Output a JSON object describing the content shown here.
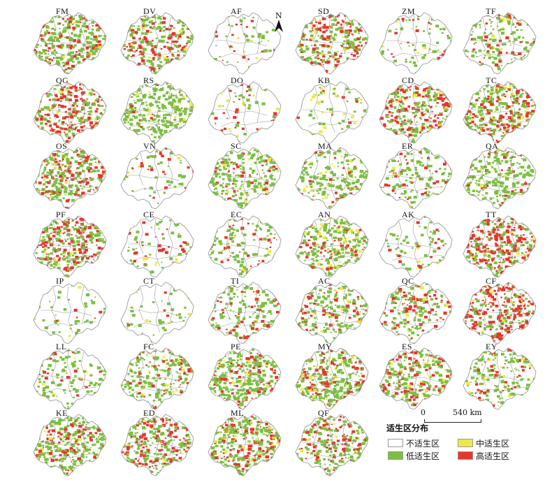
{
  "panels": [
    {
      "label": "FM",
      "green": 0.7,
      "yellow": 0.05,
      "red": 0.18
    },
    {
      "label": "DV",
      "green": 0.4,
      "yellow": 0.05,
      "red": 0.3
    },
    {
      "label": "AF",
      "green": 0.08,
      "yellow": 0.01,
      "red": 0.04
    },
    {
      "label": "SD",
      "green": 0.4,
      "yellow": 0.05,
      "red": 0.3
    },
    {
      "label": "ZM",
      "green": 0.12,
      "yellow": 0.02,
      "red": 0.04
    },
    {
      "label": "TF",
      "green": 0.35,
      "yellow": 0.05,
      "red": 0.12
    },
    {
      "label": "QG",
      "green": 0.35,
      "yellow": 0.05,
      "red": 0.4
    },
    {
      "label": "RS",
      "green": 0.7,
      "yellow": 0.05,
      "red": 0.05
    },
    {
      "label": "DO",
      "green": 0.08,
      "yellow": 0.02,
      "red": 0.06
    },
    {
      "label": "KB",
      "green": 0.1,
      "yellow": 0.05,
      "red": 0.02
    },
    {
      "label": "CD",
      "green": 0.45,
      "yellow": 0.05,
      "red": 0.3
    },
    {
      "label": "TC",
      "green": 0.5,
      "yellow": 0.1,
      "red": 0.35
    },
    {
      "label": "OS",
      "green": 0.55,
      "yellow": 0.05,
      "red": 0.25
    },
    {
      "label": "VN",
      "green": 0.15,
      "yellow": 0.02,
      "red": 0.06
    },
    {
      "label": "SC",
      "green": 0.55,
      "yellow": 0.05,
      "red": 0.1
    },
    {
      "label": "MA",
      "green": 0.4,
      "yellow": 0.05,
      "red": 0.08
    },
    {
      "label": "ER",
      "green": 0.25,
      "yellow": 0.03,
      "red": 0.1
    },
    {
      "label": "QA",
      "green": 0.6,
      "yellow": 0.05,
      "red": 0.08
    },
    {
      "label": "PF",
      "green": 0.45,
      "yellow": 0.05,
      "red": 0.35
    },
    {
      "label": "CE",
      "green": 0.12,
      "yellow": 0.02,
      "red": 0.08
    },
    {
      "label": "EC",
      "green": 0.2,
      "yellow": 0.02,
      "red": 0.1
    },
    {
      "label": "AN",
      "green": 0.5,
      "yellow": 0.15,
      "red": 0.15
    },
    {
      "label": "AK",
      "green": 0.15,
      "yellow": 0.02,
      "red": 0.05
    },
    {
      "label": "TT",
      "green": 0.35,
      "yellow": 0.05,
      "red": 0.45
    },
    {
      "label": "IP",
      "green": 0.06,
      "yellow": 0.01,
      "red": 0.02
    },
    {
      "label": "CT",
      "green": 0.1,
      "yellow": 0.02,
      "red": 0.02
    },
    {
      "label": "TI",
      "green": 0.3,
      "yellow": 0.03,
      "red": 0.1
    },
    {
      "label": "AC",
      "green": 0.35,
      "yellow": 0.05,
      "red": 0.15
    },
    {
      "label": "QC",
      "green": 0.3,
      "yellow": 0.03,
      "red": 0.2
    },
    {
      "label": "CF",
      "green": 0.25,
      "yellow": 0.05,
      "red": 0.55
    },
    {
      "label": "LL",
      "green": 0.25,
      "yellow": 0.02,
      "red": 0.08
    },
    {
      "label": "FC",
      "green": 0.45,
      "yellow": 0.05,
      "red": 0.12
    },
    {
      "label": "PE",
      "green": 0.65,
      "yellow": 0.08,
      "red": 0.2
    },
    {
      "label": "MY",
      "green": 0.55,
      "yellow": 0.08,
      "red": 0.25
    },
    {
      "label": "ES",
      "green": 0.4,
      "yellow": 0.05,
      "red": 0.22
    },
    {
      "label": "EY",
      "green": 0.35,
      "yellow": 0.05,
      "red": 0.12
    },
    {
      "label": "KE",
      "green": 0.6,
      "yellow": 0.05,
      "red": 0.25
    },
    {
      "label": "ED",
      "green": 0.45,
      "yellow": 0.05,
      "red": 0.35
    },
    {
      "label": "ML",
      "green": 0.55,
      "yellow": 0.08,
      "red": 0.35
    },
    {
      "label": "QF",
      "green": 0.45,
      "yellow": 0.05,
      "red": 0.25
    }
  ],
  "north_label": "N",
  "scale": {
    "start": "0",
    "end": "540 km"
  },
  "legend": {
    "title": "适生区分布",
    "items": [
      {
        "label": "不适生区",
        "color": "#ffffff"
      },
      {
        "label": "中适生区",
        "color": "#f0e84a"
      },
      {
        "label": "低适生区",
        "color": "#7cbf3f"
      },
      {
        "label": "高适生区",
        "color": "#e8342c"
      }
    ]
  },
  "colors": {
    "outline": "#9a9a9a",
    "unsuitable": "#ffffff",
    "low": "#7cbf3f",
    "medium": "#f0e84a",
    "high": "#e8342c"
  }
}
